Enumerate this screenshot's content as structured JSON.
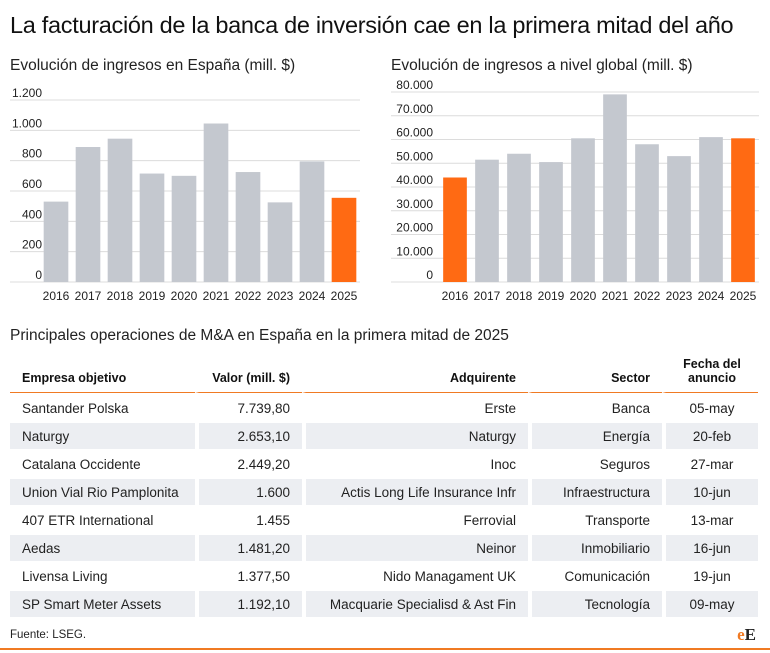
{
  "header": {
    "title": "La facturación de la banca de inversión cae en la primera mitad del año"
  },
  "colors": {
    "bar": "#c4c8cf",
    "highlight": "#ff6a13",
    "grid": "#dcdcdc",
    "accent": "#f07a23"
  },
  "chart_data": [
    {
      "type": "bar",
      "title": "Evolución de ingresos en España (mill. $)",
      "xlabel": "",
      "ylabel": "",
      "categories": [
        "2016",
        "2017",
        "2018",
        "2019",
        "2020",
        "2021",
        "2022",
        "2023",
        "2024",
        "2025"
      ],
      "values": [
        530,
        890,
        945,
        715,
        700,
        1045,
        725,
        525,
        795,
        555
      ],
      "highlight": [
        "2025"
      ],
      "ylim": [
        0,
        1200
      ],
      "yticks": [
        0,
        200,
        400,
        600,
        800,
        1000,
        1200
      ],
      "ytick_labels": [
        "0",
        "200",
        "400",
        "600",
        "800",
        "1.000",
        "1.200"
      ],
      "grid": true
    },
    {
      "type": "bar",
      "title": "Evolución de ingresos a nivel global (mill. $)",
      "xlabel": "",
      "ylabel": "",
      "categories": [
        "2016",
        "2017",
        "2018",
        "2019",
        "2020",
        "2021",
        "2022",
        "2023",
        "2024",
        "2025"
      ],
      "values": [
        44000,
        51500,
        54000,
        50500,
        60500,
        79000,
        58000,
        53000,
        61000,
        60500
      ],
      "highlight": [
        "2016",
        "2025"
      ],
      "ylim": [
        0,
        80000
      ],
      "yticks": [
        0,
        10000,
        20000,
        30000,
        40000,
        50000,
        60000,
        70000,
        80000
      ],
      "ytick_labels": [
        "0",
        "10.000",
        "20.000",
        "30.000",
        "40.000",
        "50.000",
        "60.000",
        "70.000",
        "80.000"
      ],
      "grid": true
    }
  ],
  "table": {
    "title": "Principales operaciones de M&A en España en la primera mitad de 2025",
    "headers": {
      "company": "Empresa objetivo",
      "value": "Valor (mill. $)",
      "acquirer": "Adquirente",
      "sector": "Sector",
      "date_line1": "Fecha del",
      "date_line2": "anuncio"
    },
    "rows": [
      {
        "company": "Santander Polska",
        "value": "7.739,80",
        "acquirer": "Erste",
        "sector": "Banca",
        "date": "05-may"
      },
      {
        "company": "Naturgy",
        "value": "2.653,10",
        "acquirer": "Naturgy",
        "sector": "Energía",
        "date": "20-feb"
      },
      {
        "company": "Catalana Occidente",
        "value": "2.449,20",
        "acquirer": "Inoc",
        "sector": "Seguros",
        "date": "27-mar"
      },
      {
        "company": "Union Vial Rio Pamplonita",
        "value": "1.600",
        "acquirer": "Actis Long Life Insurance Infr",
        "sector": "Infraestructura",
        "date": "10-jun"
      },
      {
        "company": "407 ETR International",
        "value": "1.455",
        "acquirer": "Ferrovial",
        "sector": "Transporte",
        "date": "13-mar"
      },
      {
        "company": "Aedas",
        "value": "1.481,20",
        "acquirer": "Neinor",
        "sector": "Inmobiliario",
        "date": "16-jun"
      },
      {
        "company": "Livensa Living",
        "value": "1.377,50",
        "acquirer": "Nido Managament UK",
        "sector": "Comunicación",
        "date": "19-jun"
      },
      {
        "company": "SP Smart Meter Assets",
        "value": "1.192,10",
        "acquirer": "Macquarie Specialisd & Ast Fin",
        "sector": "Tecnología",
        "date": "09-may"
      }
    ]
  },
  "footer": {
    "source": "Fuente: LSEG.",
    "logo_e1": "e",
    "logo_e2": "E"
  }
}
